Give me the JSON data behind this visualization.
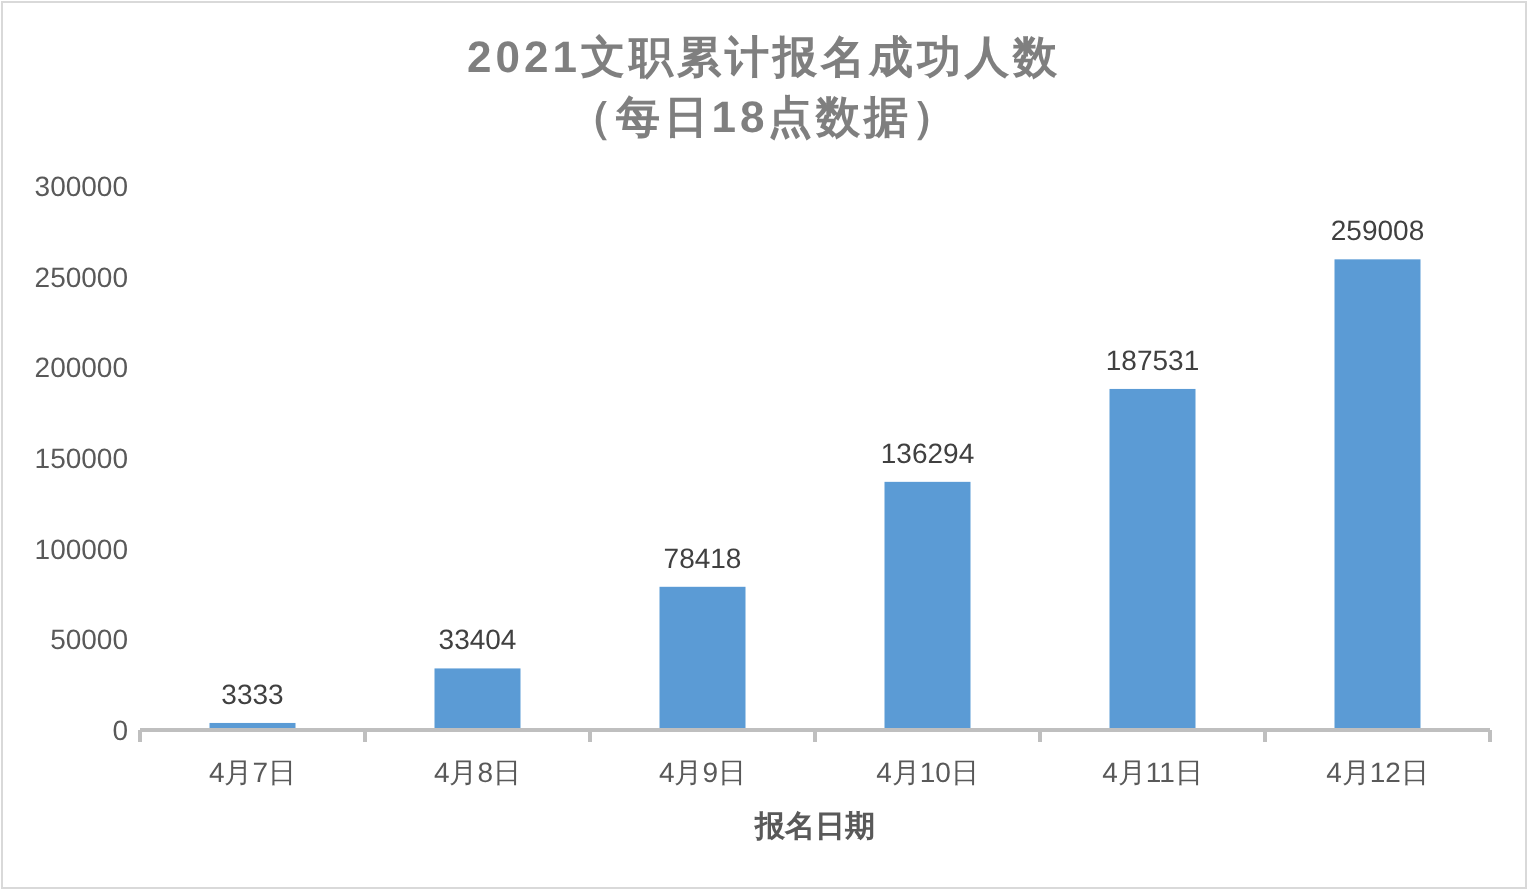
{
  "chart_data": {
    "type": "bar",
    "title": "2021文职累计报名成功人数",
    "subtitle": "（每日18点数据）",
    "xlabel": "报名日期",
    "categories": [
      "4月7日",
      "4月8日",
      "4月9日",
      "4月10日",
      "4月11日",
      "4月12日"
    ],
    "values": [
      3333,
      33404,
      78418,
      136294,
      187531,
      259008
    ],
    "color": "#5b9bd5",
    "data_labels": true,
    "ylim": [
      0,
      300000
    ],
    "yticks": [
      0,
      50000,
      100000,
      150000,
      200000,
      250000,
      300000
    ]
  }
}
